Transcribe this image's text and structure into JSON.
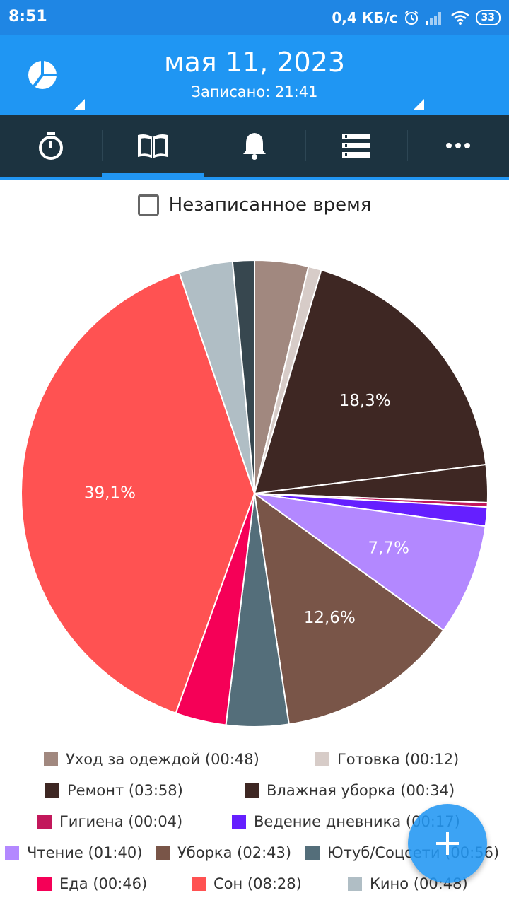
{
  "status": {
    "time": "8:51",
    "speed": "0,4 КБ/с",
    "battery": "33"
  },
  "header": {
    "date": "мая 11, 2023",
    "recorded": "Записано: 21:41"
  },
  "tabs": [
    {
      "name": "timer",
      "icon": "stopwatch-icon",
      "active": false
    },
    {
      "name": "log",
      "icon": "book-icon",
      "active": true
    },
    {
      "name": "reminders",
      "icon": "bell-icon",
      "active": false
    },
    {
      "name": "list",
      "icon": "list-icon",
      "active": false
    },
    {
      "name": "more",
      "icon": "more-dots-icon",
      "active": false
    }
  ],
  "unrecorded": {
    "label": "Незаписанное время",
    "checked": false
  },
  "chart_data": {
    "type": "pie",
    "slices": [
      {
        "label": "Уход за одеждой",
        "duration": "00:48",
        "value": 3.7,
        "color": "#a1887f"
      },
      {
        "label": "Готовка",
        "duration": "00:12",
        "value": 0.9,
        "color": "#d7ccc8"
      },
      {
        "label": "Ремонт",
        "duration": "03:58",
        "value": 18.3,
        "color": "#3e2723",
        "display": "18,3%"
      },
      {
        "label": "Влажная уборка",
        "duration": "00:34",
        "value": 2.6,
        "color": "#3e2723"
      },
      {
        "label": "Гигиена",
        "duration": "00:04",
        "value": 0.3,
        "color": "#c2185b"
      },
      {
        "label": "Ведение дневника",
        "duration": "00:17",
        "value": 1.3,
        "color": "#651fff"
      },
      {
        "label": "Чтение",
        "duration": "01:40",
        "value": 7.7,
        "color": "#b388ff",
        "display": "7,7%"
      },
      {
        "label": "Уборка",
        "duration": "02:43",
        "value": 12.6,
        "color": "#795548",
        "display": "12,6%"
      },
      {
        "label": "Ютуб/Соцсети",
        "duration": "00:56",
        "value": 4.3,
        "color": "#546e7a"
      },
      {
        "label": "Еда",
        "duration": "00:46",
        "value": 3.5,
        "color": "#f50057"
      },
      {
        "label": "Сон",
        "duration": "08:28",
        "value": 39.1,
        "color": "#ff5252",
        "display": "39,1%"
      },
      {
        "label": "Кино",
        "duration": "00:48",
        "value": 3.7,
        "color": "#b0bec5"
      },
      {
        "label": "",
        "duration": "",
        "value": 1.5,
        "color": "#37474f"
      }
    ]
  },
  "legend": [
    {
      "text": "Уход за одеждой  (00:48)",
      "color": "#a1887f"
    },
    {
      "text": "Готовка  (00:12)",
      "color": "#d7ccc8"
    },
    {
      "text": "Ремонт  (03:58)",
      "color": "#3e2723"
    },
    {
      "text": "Влажная уборка  (00:34)",
      "color": "#3e2723"
    },
    {
      "text": "Гигиена  (00:04)",
      "color": "#c2185b"
    },
    {
      "text": "Ведение дневника  (00:17)",
      "color": "#651fff"
    },
    {
      "text": "Чтение  (01:40)",
      "color": "#b388ff"
    },
    {
      "text": "Уборка  (02:43)",
      "color": "#795548"
    },
    {
      "text": "Ютуб/Соцсети  (00:56)",
      "color": "#546e7a"
    },
    {
      "text": "Еда  (00:46)",
      "color": "#f50057"
    },
    {
      "text": "Сон  (08:28)",
      "color": "#ff5252"
    },
    {
      "text": "Кино  (00:48)",
      "color": "#b0bec5"
    }
  ],
  "fab": {
    "icon": "plus-icon"
  }
}
